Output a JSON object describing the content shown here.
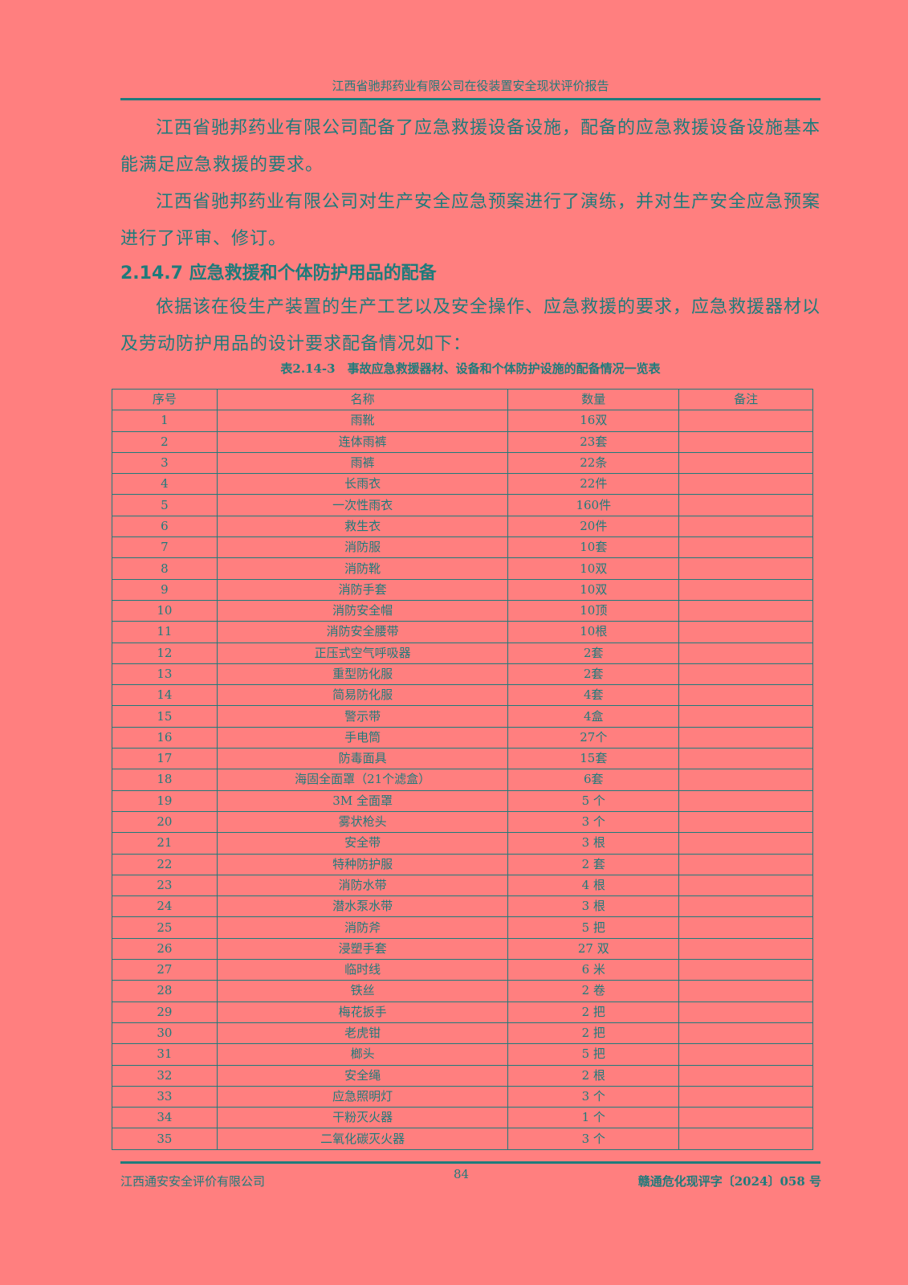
{
  "header": {
    "title": "江西省驰邦药业有限公司在役装置安全现状评价报告"
  },
  "paragraphs": [
    "江西省驰邦药业有限公司配备了应急救援设备设施，配备的应急救援设备设施基本能满足应急救援的要求。",
    "江西省驰邦药业有限公司对生产安全应急预案进行了演练，并对生产安全应急预案进行了评审、修订。"
  ],
  "section": {
    "heading": "2.14.7 应急救援和个体防护用品的配备",
    "intro": "依据该在役生产装置的生产工艺以及安全操作、应急救援的要求，应急救援器材以及劳动防护用品的设计要求配备情况如下："
  },
  "table": {
    "caption": "表2.14-3　事故应急救援器材、设备和个体防护设施的配备情况一览表",
    "headers": [
      "序号",
      "名称",
      "数量",
      "备注"
    ],
    "rows": [
      [
        "1",
        "雨靴",
        "16双",
        ""
      ],
      [
        "2",
        "连体雨裤",
        "23套",
        ""
      ],
      [
        "3",
        "雨裤",
        "22条",
        ""
      ],
      [
        "4",
        "长雨衣",
        "22件",
        ""
      ],
      [
        "5",
        "一次性雨衣",
        "160件",
        ""
      ],
      [
        "6",
        "救生衣",
        "20件",
        ""
      ],
      [
        "7",
        "消防服",
        "10套",
        ""
      ],
      [
        "8",
        "消防靴",
        "10双",
        ""
      ],
      [
        "9",
        "消防手套",
        "10双",
        ""
      ],
      [
        "10",
        "消防安全帽",
        "10顶",
        ""
      ],
      [
        "11",
        "消防安全腰带",
        "10根",
        ""
      ],
      [
        "12",
        "正压式空气呼吸器",
        "2套",
        ""
      ],
      [
        "13",
        "重型防化服",
        "2套",
        ""
      ],
      [
        "14",
        "简易防化服",
        "4套",
        ""
      ],
      [
        "15",
        "警示带",
        "4盒",
        ""
      ],
      [
        "16",
        "手电筒",
        "27个",
        ""
      ],
      [
        "17",
        "防毒面具",
        "15套",
        ""
      ],
      [
        "18",
        "海固全面罩（21个滤盒）",
        "6套",
        ""
      ],
      [
        "19",
        "3M 全面罩",
        "5 个",
        ""
      ],
      [
        "20",
        "雾状枪头",
        "3 个",
        ""
      ],
      [
        "21",
        "安全带",
        "3 根",
        ""
      ],
      [
        "22",
        "特种防护服",
        "2 套",
        ""
      ],
      [
        "23",
        "消防水带",
        "4 根",
        ""
      ],
      [
        "24",
        "潜水泵水带",
        "3 根",
        ""
      ],
      [
        "25",
        "消防斧",
        "5 把",
        ""
      ],
      [
        "26",
        "浸塑手套",
        "27 双",
        ""
      ],
      [
        "27",
        "临时线",
        "6 米",
        ""
      ],
      [
        "28",
        "铁丝",
        "2 卷",
        ""
      ],
      [
        "29",
        "梅花扳手",
        "2 把",
        ""
      ],
      [
        "30",
        "老虎钳",
        "2 把",
        ""
      ],
      [
        "31",
        "榔头",
        "5 把",
        ""
      ],
      [
        "32",
        "安全绳",
        "2 根",
        ""
      ],
      [
        "33",
        "应急照明灯",
        "3 个",
        ""
      ],
      [
        "34",
        "干粉灭火器",
        "1 个",
        ""
      ],
      [
        "35",
        "二氧化碳灭火器",
        "3 个",
        ""
      ]
    ]
  },
  "footer": {
    "company": "江西通安安全评价有限公司",
    "page": "84",
    "doc_no": "赣通危化现评字〔2024〕058 号"
  },
  "colors": {
    "background": "#ff7f7f",
    "text": "#1f7b7b"
  }
}
